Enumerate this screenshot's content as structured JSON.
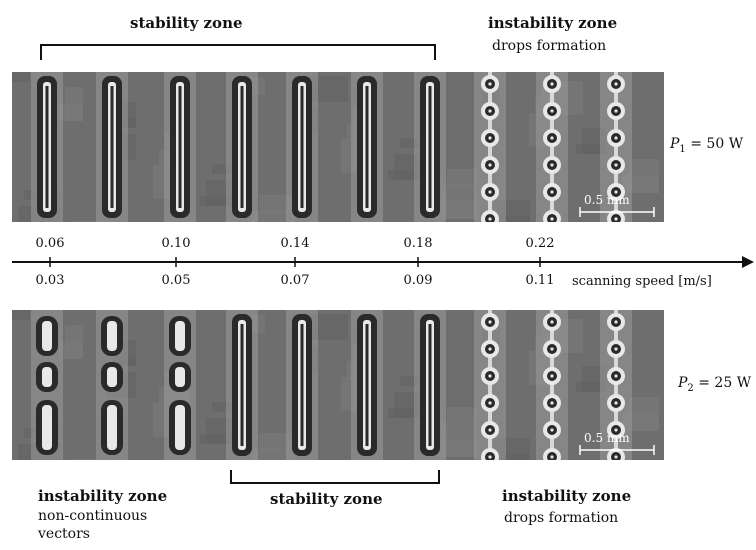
{
  "top": {
    "stability_title": "stability zone",
    "instability_title": "instability zone",
    "instability_sub": "drops formation",
    "power_symbol": "P",
    "power_sub": "1",
    "power_value": "= 50 W",
    "scale_label": "0.5 mm"
  },
  "axis": {
    "top_ticks": [
      "0.06",
      "0.10",
      "0.14",
      "0.18",
      "0.22"
    ],
    "bottom_ticks": [
      "0.03",
      "0.05",
      "0.07",
      "0.09",
      "0.11"
    ],
    "label": "scanning speed [m/s]"
  },
  "bottom": {
    "power_symbol": "P",
    "power_sub": "2",
    "power_value": "= 25 W",
    "scale_label": "0.5 mm",
    "left_title": "instability zone",
    "left_sub1": "non-continuous",
    "left_sub2": "vectors",
    "stability_title": "stability zone",
    "right_title": "instability zone",
    "right_sub": "drops formation"
  },
  "tracks": {
    "top": [
      "continuous",
      "continuous",
      "continuous",
      "continuous",
      "continuous",
      "continuous",
      "continuous",
      "drops",
      "drops",
      "drops"
    ],
    "bottom": [
      "broken",
      "broken",
      "broken",
      "continuous",
      "continuous",
      "continuous",
      "continuous",
      "drops",
      "drops",
      "drops"
    ]
  },
  "colors": {
    "panel": "#6e6e6e",
    "track_dark": "#2a2a2a",
    "track_light": "#e8e8e8",
    "ink": "#111111"
  }
}
